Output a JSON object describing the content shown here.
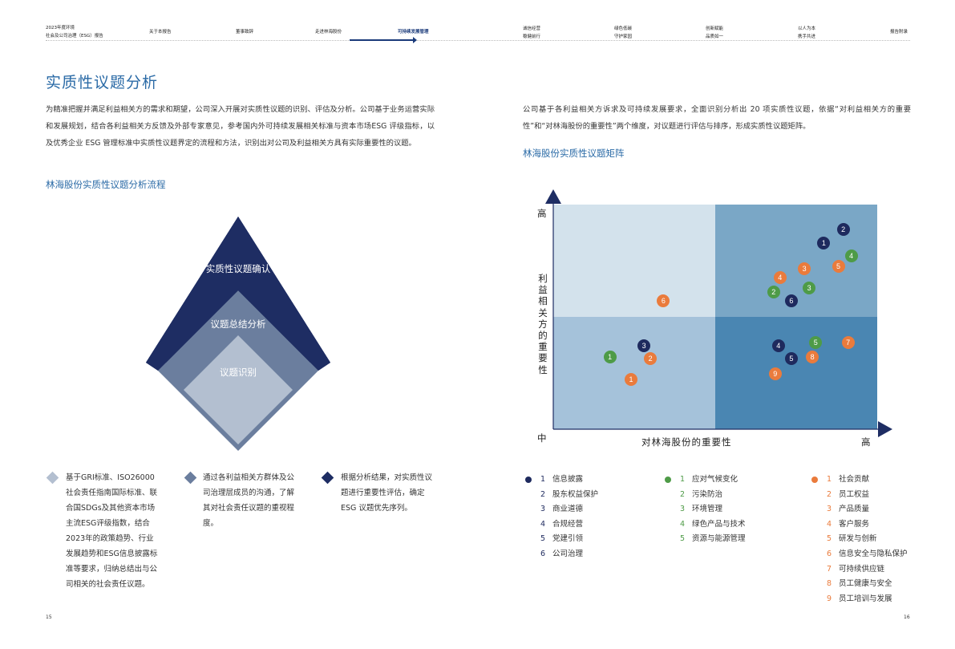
{
  "header": {
    "report_title_line1": "2023年度环境",
    "report_title_line2": "社会及公司治理（ESG）报告",
    "left_nav": [
      {
        "label": "关于本报告"
      },
      {
        "label": "董事致辞"
      },
      {
        "label": "走进林海股份"
      },
      {
        "label": "可持续发展管理"
      }
    ],
    "right_nav": [
      {
        "line1": "诚信经营",
        "line2": "稳健前行"
      },
      {
        "line1": "绿色低碳",
        "line2": "守护家园"
      },
      {
        "line1": "创新赋能",
        "line2": "品质如一"
      },
      {
        "line1": "以人为本",
        "line2": "携手共进"
      },
      {
        "line1": "报告附录",
        "line2": ""
      }
    ]
  },
  "left_page": {
    "title": "实质性议题分析",
    "intro": "为精准把握并满足利益相关方的需求和期望，公司深入开展对实质性议题的识别、评估及分析。公司基于业务运营实际和发展规划，结合各利益相关方反馈及外部专家意见，参考国内外可持续发展相关标准与资本市场ESG 评级指标，以及优秀企业 ESG 管理标准中实质性议题界定的流程和方法，识别出对公司及利益相关方具有实际重要性的议题。",
    "process_title": "林海股份实质性议题分析流程",
    "diamond_labels": [
      "实质性议题确认",
      "议题总结分析",
      "议题识别"
    ],
    "steps": [
      "基于GRI标准、ISO26000社会责任指南国际标准、联合国SDGs及其他资本市场主流ESG评级指数，结合2023年的政策趋势、行业发展趋势和ESG信息披露标准等要求，归纳总结出与公司相关的社会责任议题。",
      "通过各利益相关方群体及公司治理层成员的沟通，了解其对社会责任议题的重视程度。",
      "根据分析结果，对实质性议题进行重要性评估，确定 ESG 议题优先序列。"
    ],
    "page_number": "15"
  },
  "right_page": {
    "intro": "公司基于各利益相关方诉求及可持续发展要求，全面识别分析出 20 项实质性议题，依据“对利益相关方的重要性”和“对林海股份的重要性”两个维度，对议题进行评估与排序，形成实质性议题矩阵。",
    "matrix_title": "林海股份实质性议题矩阵",
    "y_axis_title": "利益相关方的重要性",
    "x_axis_title": "对林海股份的重要性",
    "y_high": "高",
    "origin": "中",
    "x_high": "高",
    "quadrant_colors": [
      "#d3e2ec",
      "#7aa7c6",
      "#a5c2da",
      "#4a86b2"
    ],
    "category_colors": {
      "governance": "#1e2a5e",
      "environment": "#4e9b47",
      "social": "#ea7b3c"
    },
    "matrix_points": [
      {
        "cat": "governance",
        "label": "1",
        "x": 8.35,
        "y": 8.3
      },
      {
        "cat": "governance",
        "label": "2",
        "x": 8.95,
        "y": 8.9
      },
      {
        "cat": "governance",
        "label": "3",
        "x": 2.8,
        "y": 3.7
      },
      {
        "cat": "governance",
        "label": "4",
        "x": 6.95,
        "y": 3.7
      },
      {
        "cat": "governance",
        "label": "5",
        "x": 7.35,
        "y": 3.15
      },
      {
        "cat": "governance",
        "label": "6",
        "x": 7.35,
        "y": 5.7
      },
      {
        "cat": "environment",
        "label": "1",
        "x": 1.75,
        "y": 3.2
      },
      {
        "cat": "environment",
        "label": "2",
        "x": 6.8,
        "y": 6.1
      },
      {
        "cat": "environment",
        "label": "3",
        "x": 7.9,
        "y": 6.3
      },
      {
        "cat": "environment",
        "label": "4",
        "x": 9.2,
        "y": 7.7
      },
      {
        "cat": "environment",
        "label": "5",
        "x": 8.1,
        "y": 3.85
      },
      {
        "cat": "social",
        "label": "1",
        "x": 2.4,
        "y": 2.2
      },
      {
        "cat": "social",
        "label": "2",
        "x": 3.0,
        "y": 3.15
      },
      {
        "cat": "social",
        "label": "3",
        "x": 7.75,
        "y": 7.15
      },
      {
        "cat": "social",
        "label": "4",
        "x": 7.0,
        "y": 6.75
      },
      {
        "cat": "social",
        "label": "5",
        "x": 8.8,
        "y": 7.25
      },
      {
        "cat": "social",
        "label": "6",
        "x": 3.4,
        "y": 5.7
      },
      {
        "cat": "social",
        "label": "7",
        "x": 9.1,
        "y": 3.85
      },
      {
        "cat": "social",
        "label": "8",
        "x": 8.0,
        "y": 3.2
      },
      {
        "cat": "social",
        "label": "9",
        "x": 6.85,
        "y": 2.45
      }
    ],
    "legend": {
      "governance": [
        {
          "num": "1",
          "label": "信息披露"
        },
        {
          "num": "2",
          "label": "股东权益保护"
        },
        {
          "num": "3",
          "label": "商业道德"
        },
        {
          "num": "4",
          "label": "合规经营"
        },
        {
          "num": "5",
          "label": "党建引领"
        },
        {
          "num": "6",
          "label": "公司治理"
        }
      ],
      "environment": [
        {
          "num": "1",
          "label": "应对气候变化"
        },
        {
          "num": "2",
          "label": "污染防治"
        },
        {
          "num": "3",
          "label": "环境管理"
        },
        {
          "num": "4",
          "label": "绿色产品与技术"
        },
        {
          "num": "5",
          "label": "资源与能源管理"
        }
      ],
      "social": [
        {
          "num": "1",
          "label": "社会贡献"
        },
        {
          "num": "2",
          "label": "员工权益"
        },
        {
          "num": "3",
          "label": "产品质量"
        },
        {
          "num": "4",
          "label": "客户服务"
        },
        {
          "num": "5",
          "label": "研发与创新"
        },
        {
          "num": "6",
          "label": "信息安全与隐私保护"
        },
        {
          "num": "7",
          "label": "可持续供应链"
        },
        {
          "num": "8",
          "label": "员工健康与安全"
        },
        {
          "num": "9",
          "label": "员工培训与发展"
        }
      ]
    },
    "page_number": "16"
  }
}
